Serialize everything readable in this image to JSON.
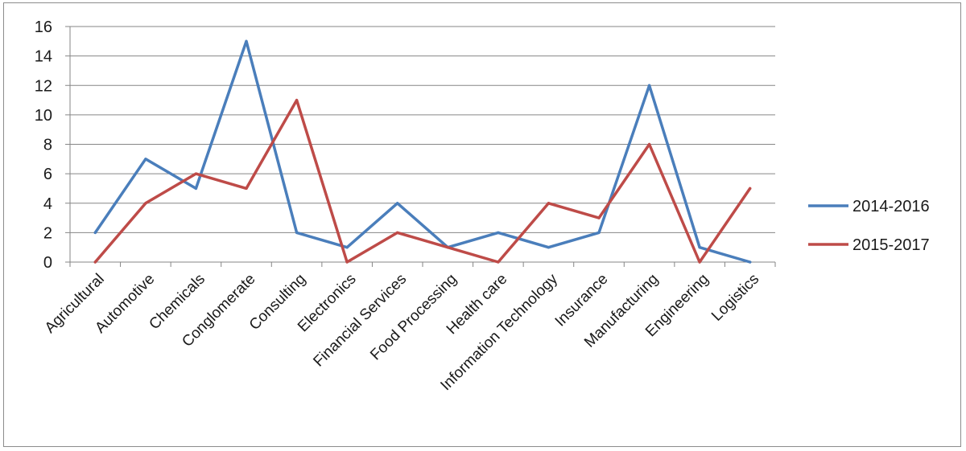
{
  "chart_data": {
    "type": "line",
    "title": "",
    "xlabel": "",
    "ylabel": "",
    "categories": [
      "Agricultural",
      "Automotive",
      "Chemicals",
      "Conglomerate",
      "Consulting",
      "Electronics",
      "Financial Services",
      "Food Processing",
      "Health care",
      "Information Technology",
      "Insurance",
      "Manufacturing",
      "Engineering",
      "Logistics"
    ],
    "series": [
      {
        "name": "2014-2016",
        "color": "#4a7ebb",
        "values": [
          2,
          7,
          5,
          15,
          2,
          1,
          4,
          1,
          2,
          1,
          2,
          12,
          1,
          0
        ]
      },
      {
        "name": "2015-2017",
        "color": "#be4b48",
        "values": [
          0,
          4,
          6,
          5,
          11,
          0,
          2,
          1,
          0,
          4,
          3,
          8,
          0,
          5
        ]
      }
    ],
    "ylim": [
      0,
      16
    ],
    "yticks": [
      0,
      2,
      4,
      6,
      8,
      10,
      12,
      14,
      16
    ],
    "grid": true,
    "legend_position": "right"
  }
}
